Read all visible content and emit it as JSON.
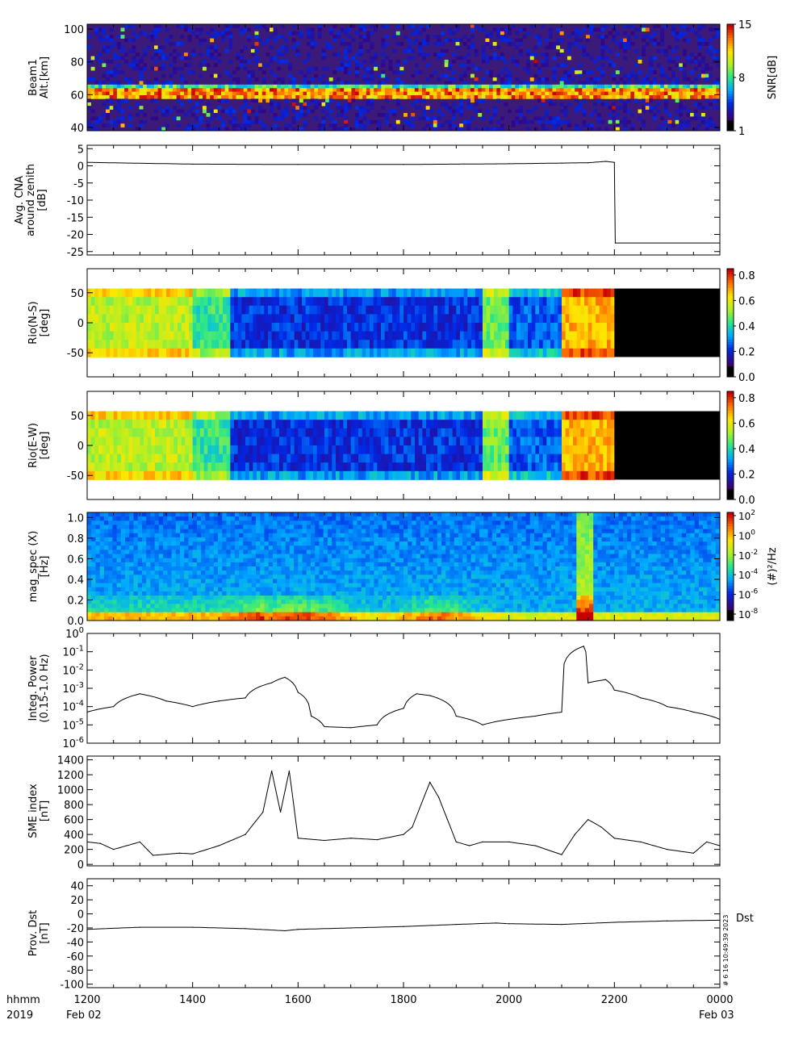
{
  "time_axis": {
    "label_line1": "hhmm",
    "label_line2": "2019",
    "ticks": [
      "1200",
      "1400",
      "1600",
      "1800",
      "2000",
      "2200",
      "0000"
    ],
    "date_left": "Feb 02",
    "date_right": "Feb 03"
  },
  "stamp": "# 6 16 10:49:39 2023",
  "chart_data": [
    {
      "type": "heatmap",
      "ylabel_lines": [
        "Beam1",
        "Alt.[km]"
      ],
      "yticks": [
        "100",
        "80",
        "60",
        "40"
      ],
      "ylim": [
        38,
        103
      ],
      "colorbar": {
        "label": "SNR[dB]",
        "ticks": [
          "15",
          "8",
          "1"
        ],
        "range": [
          1,
          15
        ]
      },
      "features": [
        {
          "description": "bright layer",
          "altitude_km": 61,
          "time_range": [
            "1200",
            "0000"
          ]
        }
      ]
    },
    {
      "type": "line",
      "ylabel_lines": [
        "Avg. CNA",
        "around zenith",
        "[dB]"
      ],
      "yticks": [
        "5",
        "0",
        "-5",
        "-10",
        "-15",
        "-20",
        "-25"
      ],
      "ylim": [
        -26,
        6
      ],
      "x": [
        "1200",
        "1400",
        "1600",
        "1800",
        "2000",
        "2100",
        "2130",
        "2150",
        "2200",
        "2201",
        "0000"
      ],
      "values": [
        1,
        0.5,
        0.4,
        0.4,
        0.6,
        0.8,
        0.9,
        1.3,
        1,
        -22.5,
        -22.5
      ]
    },
    {
      "type": "heatmap",
      "ylabel_lines": [
        "Rio(N-S)",
        "[deg]"
      ],
      "yticks": [
        "50",
        "0",
        "-50"
      ],
      "ylim": [
        -90,
        90
      ],
      "colorbar": {
        "ticks": [
          "0.8",
          "0.6",
          "0.4",
          "0.2",
          "0.0"
        ],
        "range": [
          0,
          0.85
        ]
      },
      "no_data_after": "2200"
    },
    {
      "type": "heatmap",
      "ylabel_lines": [
        "Rio(E-W)",
        "[deg]"
      ],
      "yticks": [
        "50",
        "0",
        "-50"
      ],
      "ylim": [
        -90,
        90
      ],
      "colorbar": {
        "ticks": [
          "0.8",
          "0.6",
          "0.4",
          "0.2",
          "0.0"
        ],
        "range": [
          0,
          0.85
        ]
      },
      "no_data_after": "2200"
    },
    {
      "type": "heatmap",
      "ylabel_lines": [
        "mag_spec (X)",
        "[Hz]"
      ],
      "yticks": [
        "1.0",
        "0.8",
        "0.6",
        "0.4",
        "0.2",
        "0.0"
      ],
      "ylim": [
        0,
        1.05
      ],
      "colorbar": {
        "label": "(#)²/Hz",
        "ticks": [
          {
            "base": "10",
            "exp": "2"
          },
          {
            "base": "10",
            "exp": "0"
          },
          {
            "base": "10",
            "exp": "-2"
          },
          {
            "base": "10",
            "exp": "-4"
          },
          {
            "base": "10",
            "exp": "-6"
          },
          {
            "base": "10",
            "exp": "-8"
          }
        ]
      }
    },
    {
      "type": "line",
      "scale": "log",
      "ylabel_lines": [
        "Integ. Power",
        "(0.15-1.0 Hz)"
      ],
      "yticks": [
        {
          "base": "10",
          "exp": "0"
        },
        {
          "base": "10",
          "exp": "-1"
        },
        {
          "base": "10",
          "exp": "-2"
        },
        {
          "base": "10",
          "exp": "-3"
        },
        {
          "base": "10",
          "exp": "-4"
        },
        {
          "base": "10",
          "exp": "-5"
        },
        {
          "base": "10",
          "exp": "-6"
        }
      ],
      "ylim": [
        1e-06,
        1
      ],
      "x": [
        "1200",
        "1230",
        "1300",
        "1330",
        "1400",
        "1430",
        "1500",
        "1530",
        "1545",
        "1600",
        "1615",
        "1630",
        "1700",
        "1730",
        "1800",
        "1815",
        "1830",
        "1900",
        "1930",
        "2000",
        "2030",
        "2100",
        "2125",
        "2130",
        "2150",
        "2200",
        "2230",
        "2300",
        "2330",
        "0000"
      ],
      "values": [
        5e-05,
        0.0001,
        0.0005,
        0.0002,
        0.0001,
        0.0002,
        0.0003,
        0.002,
        0.004,
        0.0006,
        3e-05,
        8e-06,
        7e-06,
        1e-05,
        8e-05,
        0.0005,
        0.0004,
        3e-05,
        1e-05,
        2e-05,
        3e-05,
        5e-05,
        0.2,
        0.002,
        0.003,
        0.0008,
        0.0003,
        0.0001,
        5e-05,
        2e-05
      ]
    },
    {
      "type": "line",
      "ylabel_lines": [
        "SME index",
        "[nT]"
      ],
      "yticks": [
        "1400",
        "1200",
        "1000",
        "800",
        "600",
        "400",
        "200",
        "0"
      ],
      "ylim": [
        -20,
        1450
      ],
      "x": [
        "1200",
        "1215",
        "1230",
        "1300",
        "1315",
        "1345",
        "1400",
        "1430",
        "1500",
        "1520",
        "1530",
        "1540",
        "1550",
        "1600",
        "1630",
        "1700",
        "1730",
        "1800",
        "1810",
        "1830",
        "1840",
        "1850",
        "1900",
        "1915",
        "1930",
        "2000",
        "2030",
        "2100",
        "2115",
        "2130",
        "2145",
        "2200",
        "2230",
        "2300",
        "2330",
        "2345",
        "0000"
      ],
      "values": [
        300,
        280,
        200,
        300,
        120,
        150,
        140,
        250,
        400,
        700,
        1250,
        700,
        1250,
        350,
        320,
        350,
        330,
        400,
        500,
        1100,
        900,
        600,
        300,
        250,
        300,
        300,
        250,
        130,
        400,
        600,
        500,
        350,
        300,
        200,
        150,
        300,
        250
      ]
    },
    {
      "type": "line",
      "ylabel_lines": [
        "Prov. Dst",
        "[nT]"
      ],
      "series_label": "Dst",
      "yticks": [
        "40",
        "20",
        "0",
        "-20",
        "-40",
        "-60",
        "-80",
        "-100"
      ],
      "ylim": [
        -105,
        50
      ],
      "x": [
        "1200",
        "1300",
        "1400",
        "1500",
        "1545",
        "1600",
        "1700",
        "1800",
        "1900",
        "1945",
        "2000",
        "2100",
        "2200",
        "2300",
        "0000"
      ],
      "values": [
        -22,
        -19,
        -19,
        -21,
        -24,
        -22,
        -20,
        -18,
        -15,
        -13,
        -14,
        -15,
        -12,
        -10,
        -9
      ]
    }
  ]
}
